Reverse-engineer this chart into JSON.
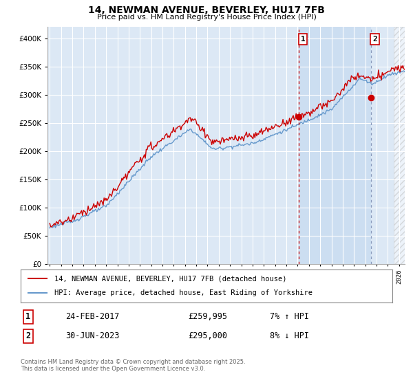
{
  "title": "14, NEWMAN AVENUE, BEVERLEY, HU17 7FB",
  "subtitle": "Price paid vs. HM Land Registry's House Price Index (HPI)",
  "legend_line1": "14, NEWMAN AVENUE, BEVERLEY, HU17 7FB (detached house)",
  "legend_line2": "HPI: Average price, detached house, East Riding of Yorkshire",
  "annotation1_label": "1",
  "annotation1_date": "24-FEB-2017",
  "annotation1_price": "£259,995",
  "annotation1_hpi": "7% ↑ HPI",
  "annotation2_label": "2",
  "annotation2_date": "30-JUN-2023",
  "annotation2_price": "£295,000",
  "annotation2_hpi": "8% ↓ HPI",
  "footer": "Contains HM Land Registry data © Crown copyright and database right 2025.\nThis data is licensed under the Open Government Licence v3.0.",
  "red_color": "#cc0000",
  "blue_color": "#6699cc",
  "bg_color": "#dce8f5",
  "shade_color": "#c8dcf0",
  "annotation_vline1_color": "#cc0000",
  "annotation_vline2_color": "#8899bb",
  "ylim": [
    0,
    420000
  ],
  "yticks": [
    0,
    50000,
    100000,
    150000,
    200000,
    250000,
    300000,
    350000,
    400000
  ],
  "xstart_year": 1995,
  "xend_year": 2026,
  "sale1_year": 2017.12,
  "sale1_price": 259995,
  "sale2_year": 2023.49,
  "sale2_price": 295000
}
